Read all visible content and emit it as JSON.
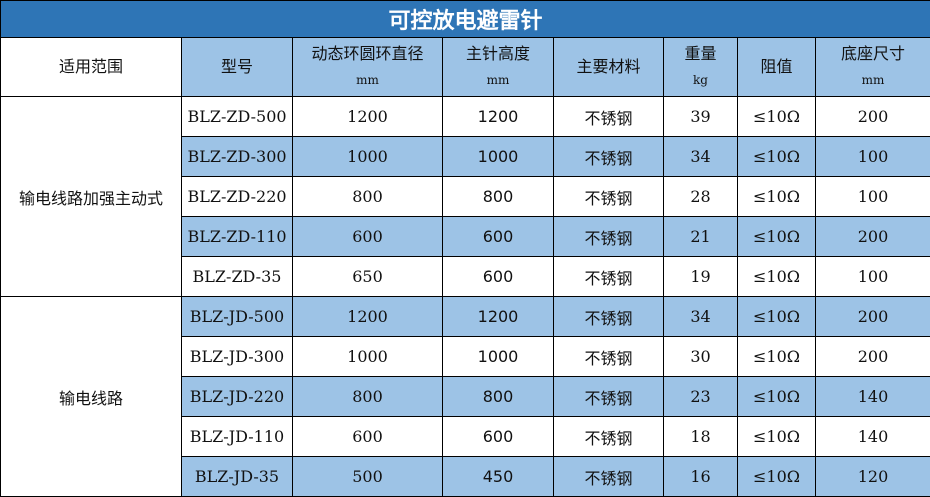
{
  "title": "可控放电避雷针",
  "headers": [
    {
      "label": "适用范围",
      "unit": ""
    },
    {
      "label": "型号",
      "unit": ""
    },
    {
      "label": "动态环圆环直径",
      "unit": "mm"
    },
    {
      "label": "主针高度",
      "unit": "mm"
    },
    {
      "label": "主要材料",
      "unit": ""
    },
    {
      "label": "重量",
      "unit": "kg"
    },
    {
      "label": "阻值",
      "unit": ""
    },
    {
      "label": "底座尺寸",
      "unit": "mm"
    }
  ],
  "colors": {
    "title_bg": "#2E75B6",
    "header_bg": "#9DC3E6",
    "alt_row_bg": "#9DC3E6"
  },
  "groups": [
    {
      "scope": "输电线路加强主动式",
      "rows": [
        [
          "BLZ-ZD-500",
          "1200",
          "1200",
          "不锈钢",
          "39",
          "≤10Ω",
          "200"
        ],
        [
          "BLZ-ZD-300",
          "1000",
          "1000",
          "不锈钢",
          "34",
          "≤10Ω",
          "100"
        ],
        [
          "BLZ-ZD-220",
          "800",
          "800",
          "不锈钢",
          "28",
          "≤10Ω",
          "100"
        ],
        [
          "BLZ-ZD-110",
          "600",
          "600",
          "不锈钢",
          "21",
          "≤10Ω",
          "200"
        ],
        [
          "BLZ-ZD-35",
          "650",
          "600",
          "不锈钢",
          "19",
          "≤10Ω",
          "100"
        ]
      ]
    },
    {
      "scope": "输电线路",
      "rows": [
        [
          "BLZ-JD-500",
          "1200",
          "1200",
          "不锈钢",
          "34",
          "≤10Ω",
          "200"
        ],
        [
          "BLZ-JD-300",
          "1000",
          "1000",
          "不锈钢",
          "30",
          "≤10Ω",
          "200"
        ],
        [
          "BLZ-JD-220",
          "800",
          "800",
          "不锈钢",
          "23",
          "≤10Ω",
          "140"
        ],
        [
          "BLZ-JD-110",
          "600",
          "600",
          "不锈钢",
          "18",
          "≤10Ω",
          "140"
        ],
        [
          "BLZ-JD-35",
          "500",
          "450",
          "不锈钢",
          "16",
          "≤10Ω",
          "120"
        ]
      ]
    }
  ]
}
